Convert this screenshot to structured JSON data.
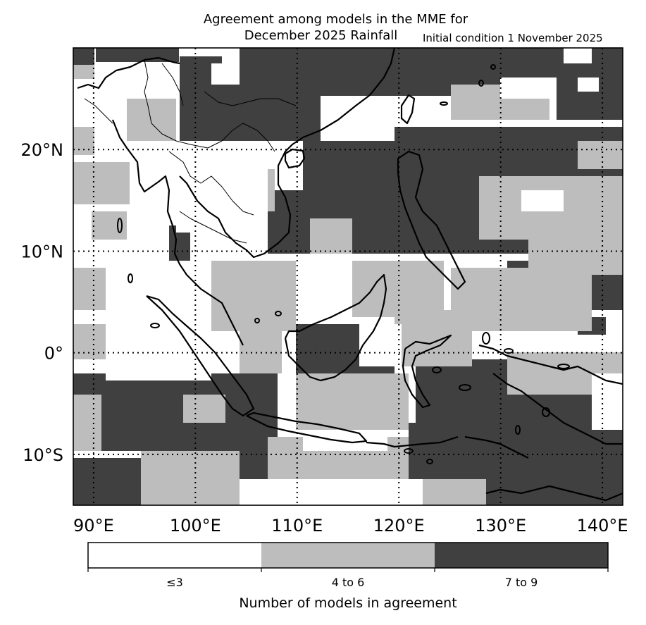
{
  "title": {
    "line1": "Agreement among models in the MME for",
    "line2": "December 2025  Rainfall",
    "subtitle": "Initial condition 1 November 2025"
  },
  "map": {
    "lon_range": [
      88,
      142
    ],
    "lat_range": [
      -15,
      30
    ],
    "lon_ticks": [
      90,
      100,
      110,
      120,
      130,
      140
    ],
    "lat_ticks": [
      20,
      10,
      0,
      -10
    ],
    "lon_labels": [
      "90°E",
      "100°E",
      "110°E",
      "120°E",
      "130°E",
      "140°E"
    ],
    "lat_labels": [
      "20°N",
      "10°N",
      "0°",
      "10°S"
    ],
    "gridlines": "dotted"
  },
  "colorbar": {
    "title": "Number of models in agreement",
    "categories": [
      {
        "label": "≤3",
        "color": "#ffffff"
      },
      {
        "label": "4 to 6",
        "color": "#bdbdbd"
      },
      {
        "label": "7 to 9",
        "color": "#404040"
      }
    ]
  },
  "colors": {
    "low": "#ffffff",
    "mid": "#bdbdbd",
    "high": "#404040",
    "coast": "#000000"
  }
}
